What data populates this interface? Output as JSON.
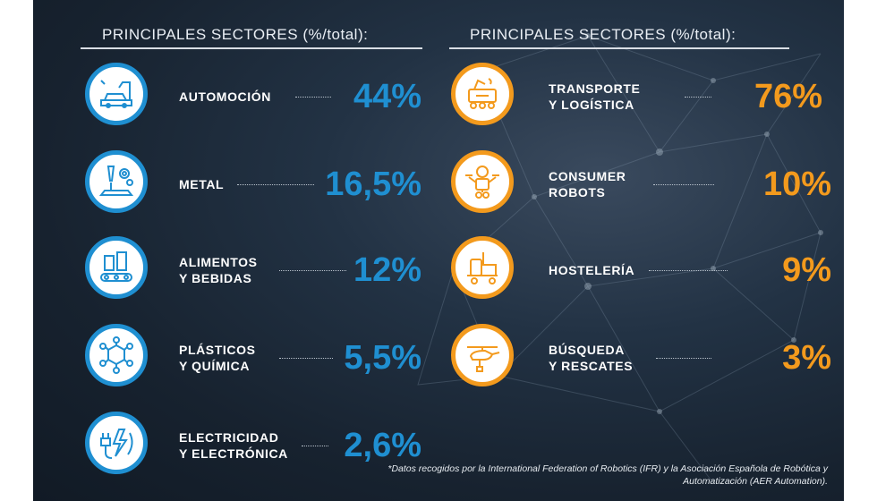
{
  "left_column": {
    "title": "PRINCIPALES SECTORES (%/total):",
    "items": [
      {
        "label": "AUTOMOCIÓN",
        "value": "44%",
        "icon": "car-assembly-robot-icon"
      },
      {
        "label": "METAL",
        "value": "16,5%",
        "icon": "laser-gear-icon"
      },
      {
        "label": "ALIMENTOS\nY BEBIDAS",
        "value": "12%",
        "icon": "conveyor-bottles-icon"
      },
      {
        "label": "PLÁSTICOS\nY QUÍMICA",
        "value": "5,5%",
        "icon": "molecule-icon"
      },
      {
        "label": "ELECTRICIDAD\nY ELECTRÓNICA",
        "value": "2,6%",
        "icon": "plug-lightning-icon"
      }
    ]
  },
  "right_column": {
    "title": "PRINCIPALES SECTORES (%/total):",
    "items": [
      {
        "label": "TRANSPORTE\nY LOGÍSTICA",
        "value": "76%",
        "icon": "delivery-robot-icon"
      },
      {
        "label": "CONSUMER\nROBOTS",
        "value": "10%",
        "icon": "service-robot-icon"
      },
      {
        "label": "HOSTELERÍA",
        "value": "9%",
        "icon": "cleaning-cart-icon"
      },
      {
        "label": "BÚSQUEDA\nY RESCATES",
        "value": "3%",
        "icon": "rescue-drone-icon"
      }
    ]
  },
  "footnote": "*Datos recogidos por la International Federation of Robotics (IFR) y la Asociación Española de Robótica y Automatización (AER Automation).",
  "colors": {
    "blue": "#1f8fd1",
    "orange": "#f39a1d",
    "background": "#17222f"
  }
}
